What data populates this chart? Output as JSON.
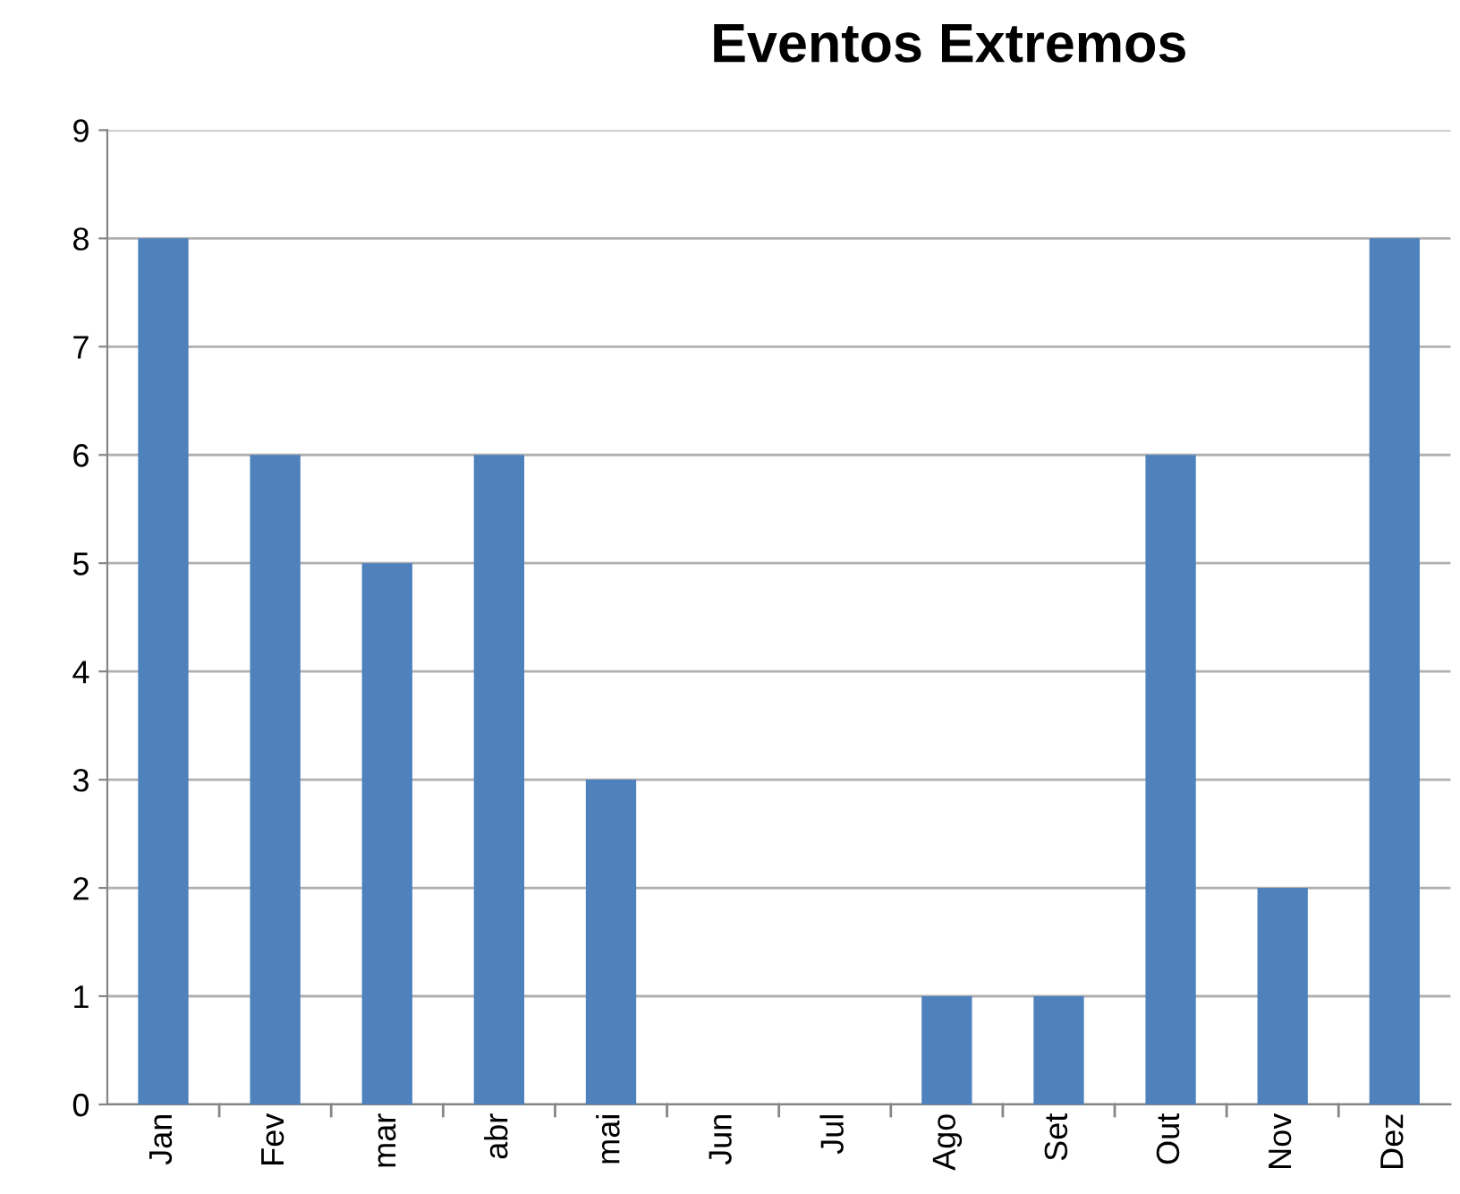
{
  "chart_data": {
    "type": "bar",
    "title": "Eventos Extremos",
    "categories": [
      "Jan",
      "Fev",
      "mar",
      "abr",
      "mai",
      "Jun",
      "Jul",
      "Ago",
      "Set",
      "Out",
      "Nov",
      "Dez"
    ],
    "values": [
      8,
      6,
      5,
      6,
      3,
      0,
      0,
      1,
      1,
      6,
      2,
      8
    ],
    "color": "#4f81bd",
    "ylim": [
      0,
      9
    ],
    "yticks": [
      0,
      1,
      2,
      3,
      4,
      5,
      6,
      7,
      8,
      9
    ],
    "grid": "y",
    "legend": false
  }
}
